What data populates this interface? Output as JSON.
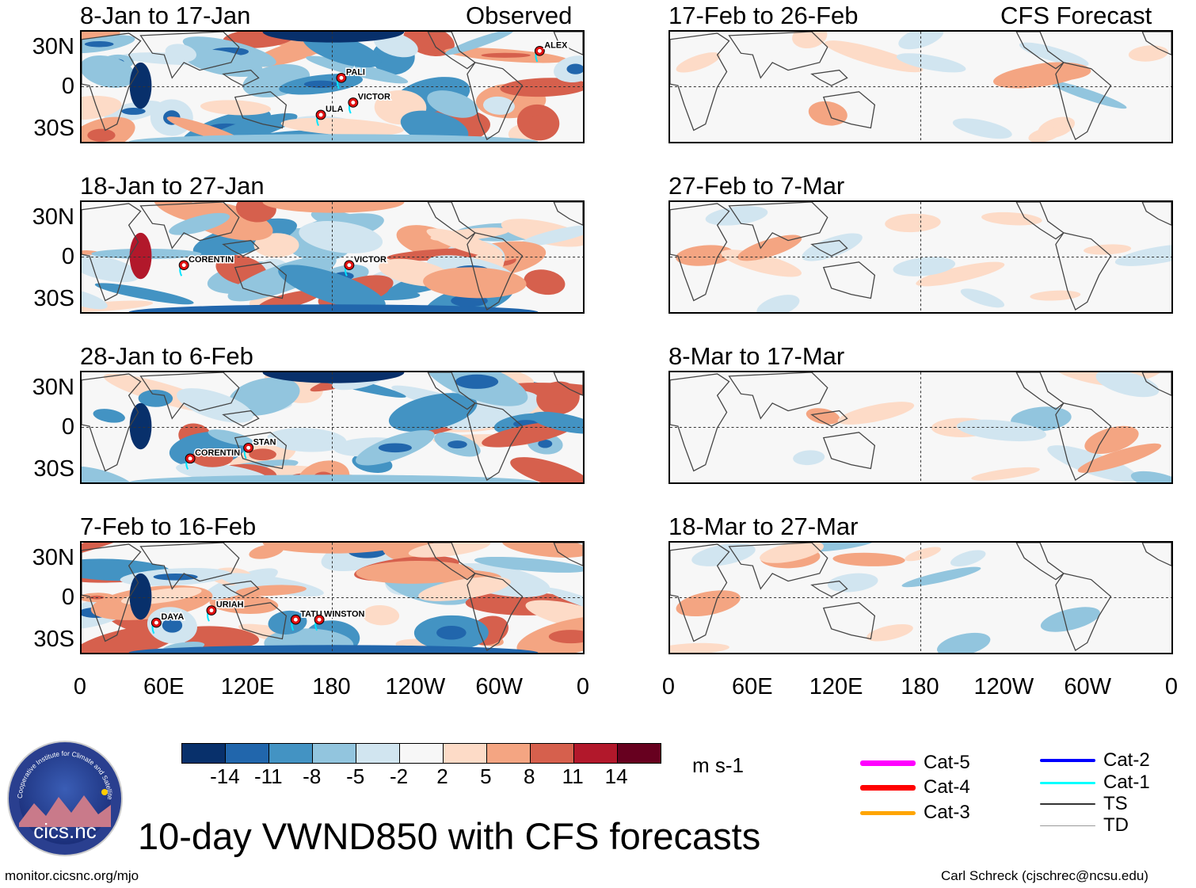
{
  "observed_label": "Observed",
  "forecast_label": "CFS Forecast",
  "lat_labels": [
    "30N",
    "0",
    "30S"
  ],
  "lon_labels": [
    "0",
    "60E",
    "120E",
    "180",
    "120W",
    "60W",
    "0"
  ],
  "panels": [
    {
      "col": 0,
      "row": 0,
      "title": "8-Jan to 17-Jan",
      "storms": [
        "ALEX",
        "PALI",
        "ULA",
        "VICTOR"
      ]
    },
    {
      "col": 0,
      "row": 1,
      "title": "18-Jan to 27-Jan",
      "storms": [
        "CORENTIN",
        "VICTOR"
      ]
    },
    {
      "col": 0,
      "row": 2,
      "title": "28-Jan to 6-Feb",
      "storms": [
        "STAN",
        "CORENTIN"
      ]
    },
    {
      "col": 0,
      "row": 3,
      "title": "7-Feb to 16-Feb",
      "storms": [
        "URIAH",
        "DAYA",
        "TATU",
        "WINSTON"
      ]
    },
    {
      "col": 1,
      "row": 0,
      "title": "17-Feb to 26-Feb",
      "storms": []
    },
    {
      "col": 1,
      "row": 1,
      "title": "27-Feb to 7-Mar",
      "storms": []
    },
    {
      "col": 1,
      "row": 2,
      "title": "8-Mar to 17-Mar",
      "storms": []
    },
    {
      "col": 1,
      "row": 3,
      "title": "18-Mar to 27-Mar",
      "storms": []
    }
  ],
  "colorbar": {
    "colors": [
      "#08306b",
      "#2166ac",
      "#4393c3",
      "#92c5de",
      "#d1e5f0",
      "#f7f7f7",
      "#fddbc7",
      "#f4a582",
      "#d6604d",
      "#b2182b",
      "#67001f"
    ],
    "ticks": [
      "-14",
      "-11",
      "-8",
      "-5",
      "-2",
      "2",
      "5",
      "8",
      "11",
      "14"
    ],
    "units": "m s-1"
  },
  "legend": {
    "items": [
      {
        "label": "Cat-5",
        "color": "#ff00ff"
      },
      {
        "label": "Cat-4",
        "color": "#ff0000"
      },
      {
        "label": "Cat-3",
        "color": "#ffa500"
      },
      {
        "label": "Cat-2",
        "color": "#0000ff"
      },
      {
        "label": "Cat-1",
        "color": "#00ffff"
      },
      {
        "label": "TS",
        "color": "#333333"
      },
      {
        "label": "TD",
        "color": "#999999"
      }
    ]
  },
  "logo": {
    "brand": "cics.nc",
    "ring_text": "Cooperative Institute for Climate and Satellites"
  },
  "main_title": "10-day VWND850 with CFS forecasts",
  "footer_left": "monitor.cicsnc.org/mjo",
  "footer_right": "Carl Schreck (cjschrec@ncsu.edu)"
}
